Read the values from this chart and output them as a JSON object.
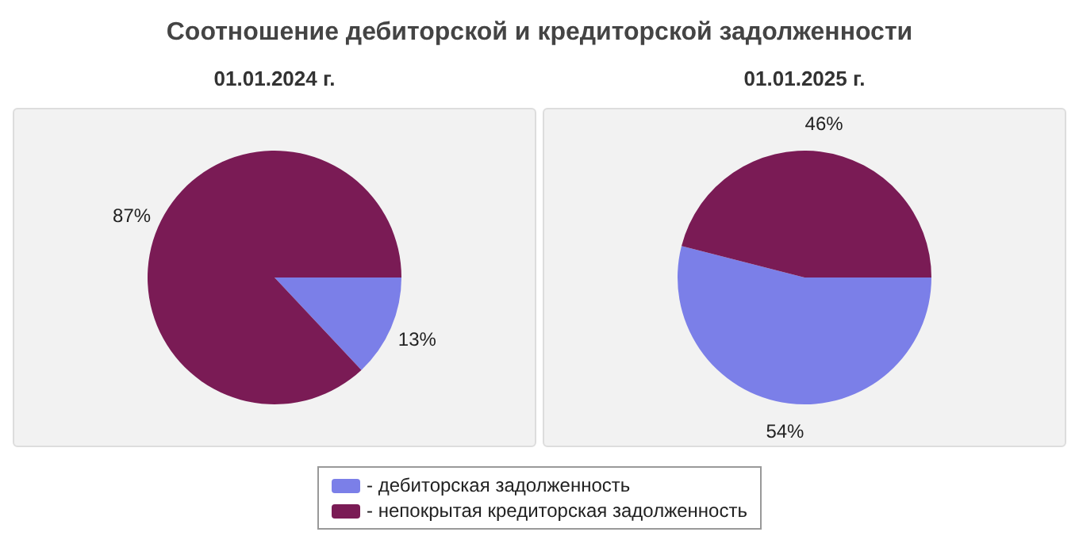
{
  "chart_data": [
    {
      "type": "pie",
      "title": "Соотношение дебиторской и кредиторской задолженности",
      "subtitle": "01.01.2024 г.",
      "categories": [
        "- дебиторская задолженность",
        "- непокрытая кредиторская задолженность"
      ],
      "values": [
        13,
        87
      ],
      "colors": [
        "#7b7fe8",
        "#7a1b55"
      ],
      "value_labels": [
        "13%",
        "87%"
      ],
      "legend": "bottom"
    },
    {
      "type": "pie",
      "subtitle": "01.01.2025 г.",
      "categories": [
        null,
        null
      ],
      "values": [
        54,
        46
      ],
      "colors": [
        "#7b7fe8",
        "#7a1b55"
      ],
      "value_labels": [
        "54%",
        "46%"
      ]
    }
  ]
}
